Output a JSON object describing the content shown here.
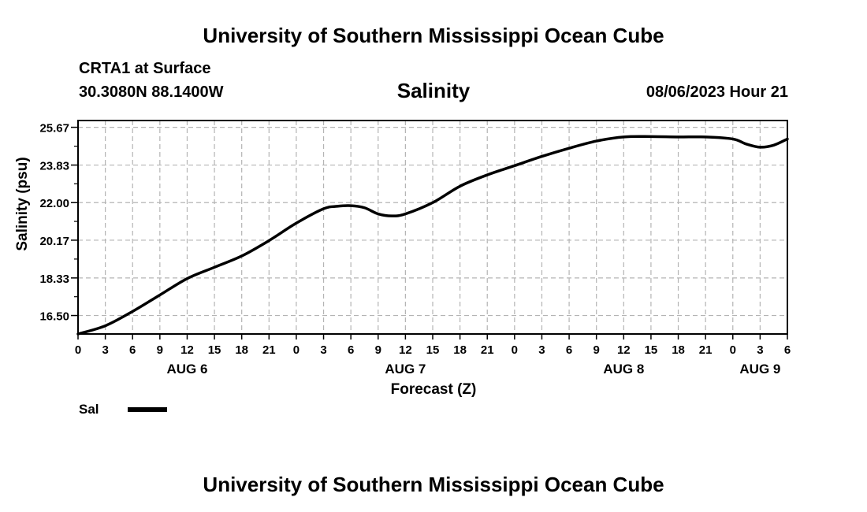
{
  "header": {
    "title": "University of Southern Mississippi Ocean Cube",
    "station": "CRTA1 at Surface",
    "coords": "30.3080N  88.1400W",
    "parameter": "Salinity",
    "datetime": "08/06/2023 Hour 21"
  },
  "footer": {
    "title": "University of Southern Mississippi Ocean Cube"
  },
  "legend": {
    "label": "Sal",
    "color": "#000000"
  },
  "chart_data": {
    "type": "line",
    "title": "Salinity",
    "xlabel": "Forecast (Z)",
    "ylabel": "Salinity (psu)",
    "x_unit": "forecast hours from 00Z Aug 6",
    "xlim": [
      0,
      78
    ],
    "ylim": [
      15.6,
      26.0
    ],
    "grid": true,
    "y_ticks": [
      16.5,
      18.33,
      20.17,
      22.0,
      23.83,
      25.67
    ],
    "y_tick_labels": [
      "16.50",
      "18.33",
      "20.17",
      "22.00",
      "23.83",
      "25.67"
    ],
    "x_ticks": [
      0,
      3,
      6,
      9,
      12,
      15,
      18,
      21,
      24,
      27,
      30,
      33,
      36,
      39,
      42,
      45,
      48,
      51,
      54,
      57,
      60,
      63,
      66,
      69,
      72,
      75,
      78
    ],
    "x_tick_labels": [
      "0",
      "3",
      "6",
      "9",
      "12",
      "15",
      "18",
      "21",
      "0",
      "3",
      "6",
      "9",
      "12",
      "15",
      "18",
      "21",
      "0",
      "3",
      "6",
      "9",
      "12",
      "15",
      "18",
      "21",
      "0",
      "3",
      "6"
    ],
    "date_labels": [
      {
        "text": "AUG 6",
        "x": 12
      },
      {
        "text": "AUG 7",
        "x": 36
      },
      {
        "text": "AUG 8",
        "x": 60
      },
      {
        "text": "AUG 9",
        "x": 75
      }
    ],
    "series": [
      {
        "name": "Sal",
        "color": "#000000",
        "x": [
          0,
          3,
          6,
          9,
          12,
          15,
          18,
          21,
          24,
          27,
          28.5,
          30,
          31.5,
          33,
          34.5,
          36,
          39,
          42,
          45,
          48,
          51,
          54,
          57,
          60,
          63,
          66,
          69,
          72,
          73.5,
          75,
          76.5,
          78
        ],
        "values": [
          15.6,
          16.0,
          16.7,
          17.5,
          18.3,
          18.85,
          19.4,
          20.15,
          21.0,
          21.7,
          21.82,
          21.85,
          21.75,
          21.45,
          21.35,
          21.45,
          22.0,
          22.8,
          23.35,
          23.8,
          24.25,
          24.65,
          25.0,
          25.2,
          25.22,
          25.2,
          25.2,
          25.1,
          24.85,
          24.7,
          24.8,
          25.1
        ]
      }
    ]
  }
}
